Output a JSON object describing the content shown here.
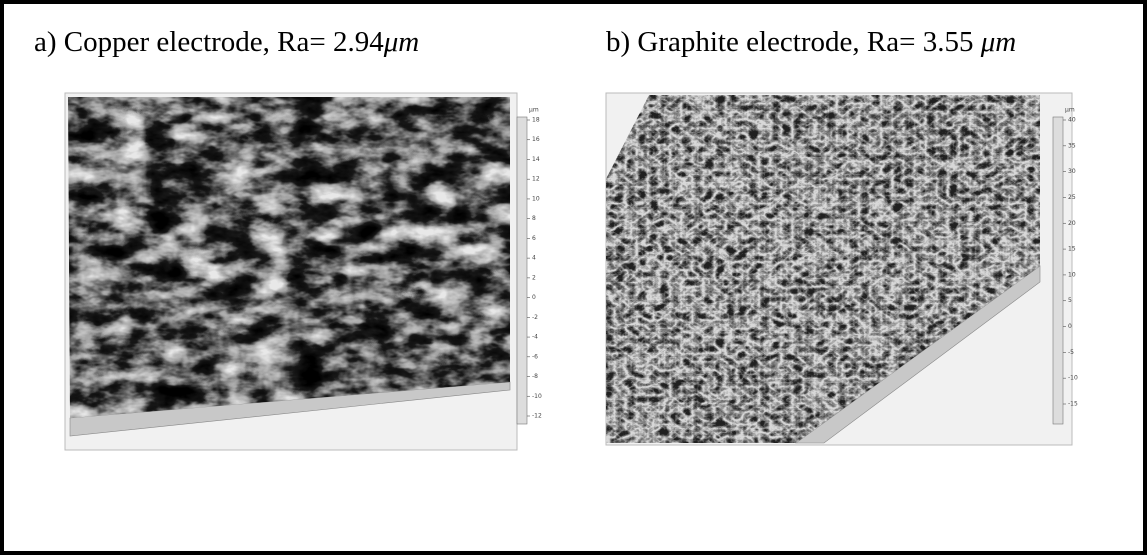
{
  "panels": [
    {
      "caption": {
        "text": "a) Copper electrode, Ra= 2.94",
        "unit": "μm"
      },
      "scale_unit": "μm",
      "scale_ticks": [
        18,
        16,
        14,
        12,
        10,
        8,
        6,
        4,
        2,
        0,
        -2,
        -4,
        -6,
        -8,
        -10,
        -12
      ]
    },
    {
      "caption": {
        "text": "b) Graphite electrode, Ra= 3.55 ",
        "unit": "μm"
      },
      "scale_unit": "μm",
      "scale_ticks": [
        40,
        35,
        30,
        25,
        20,
        15,
        10,
        5,
        0,
        -5,
        -10,
        -15
      ]
    }
  ]
}
